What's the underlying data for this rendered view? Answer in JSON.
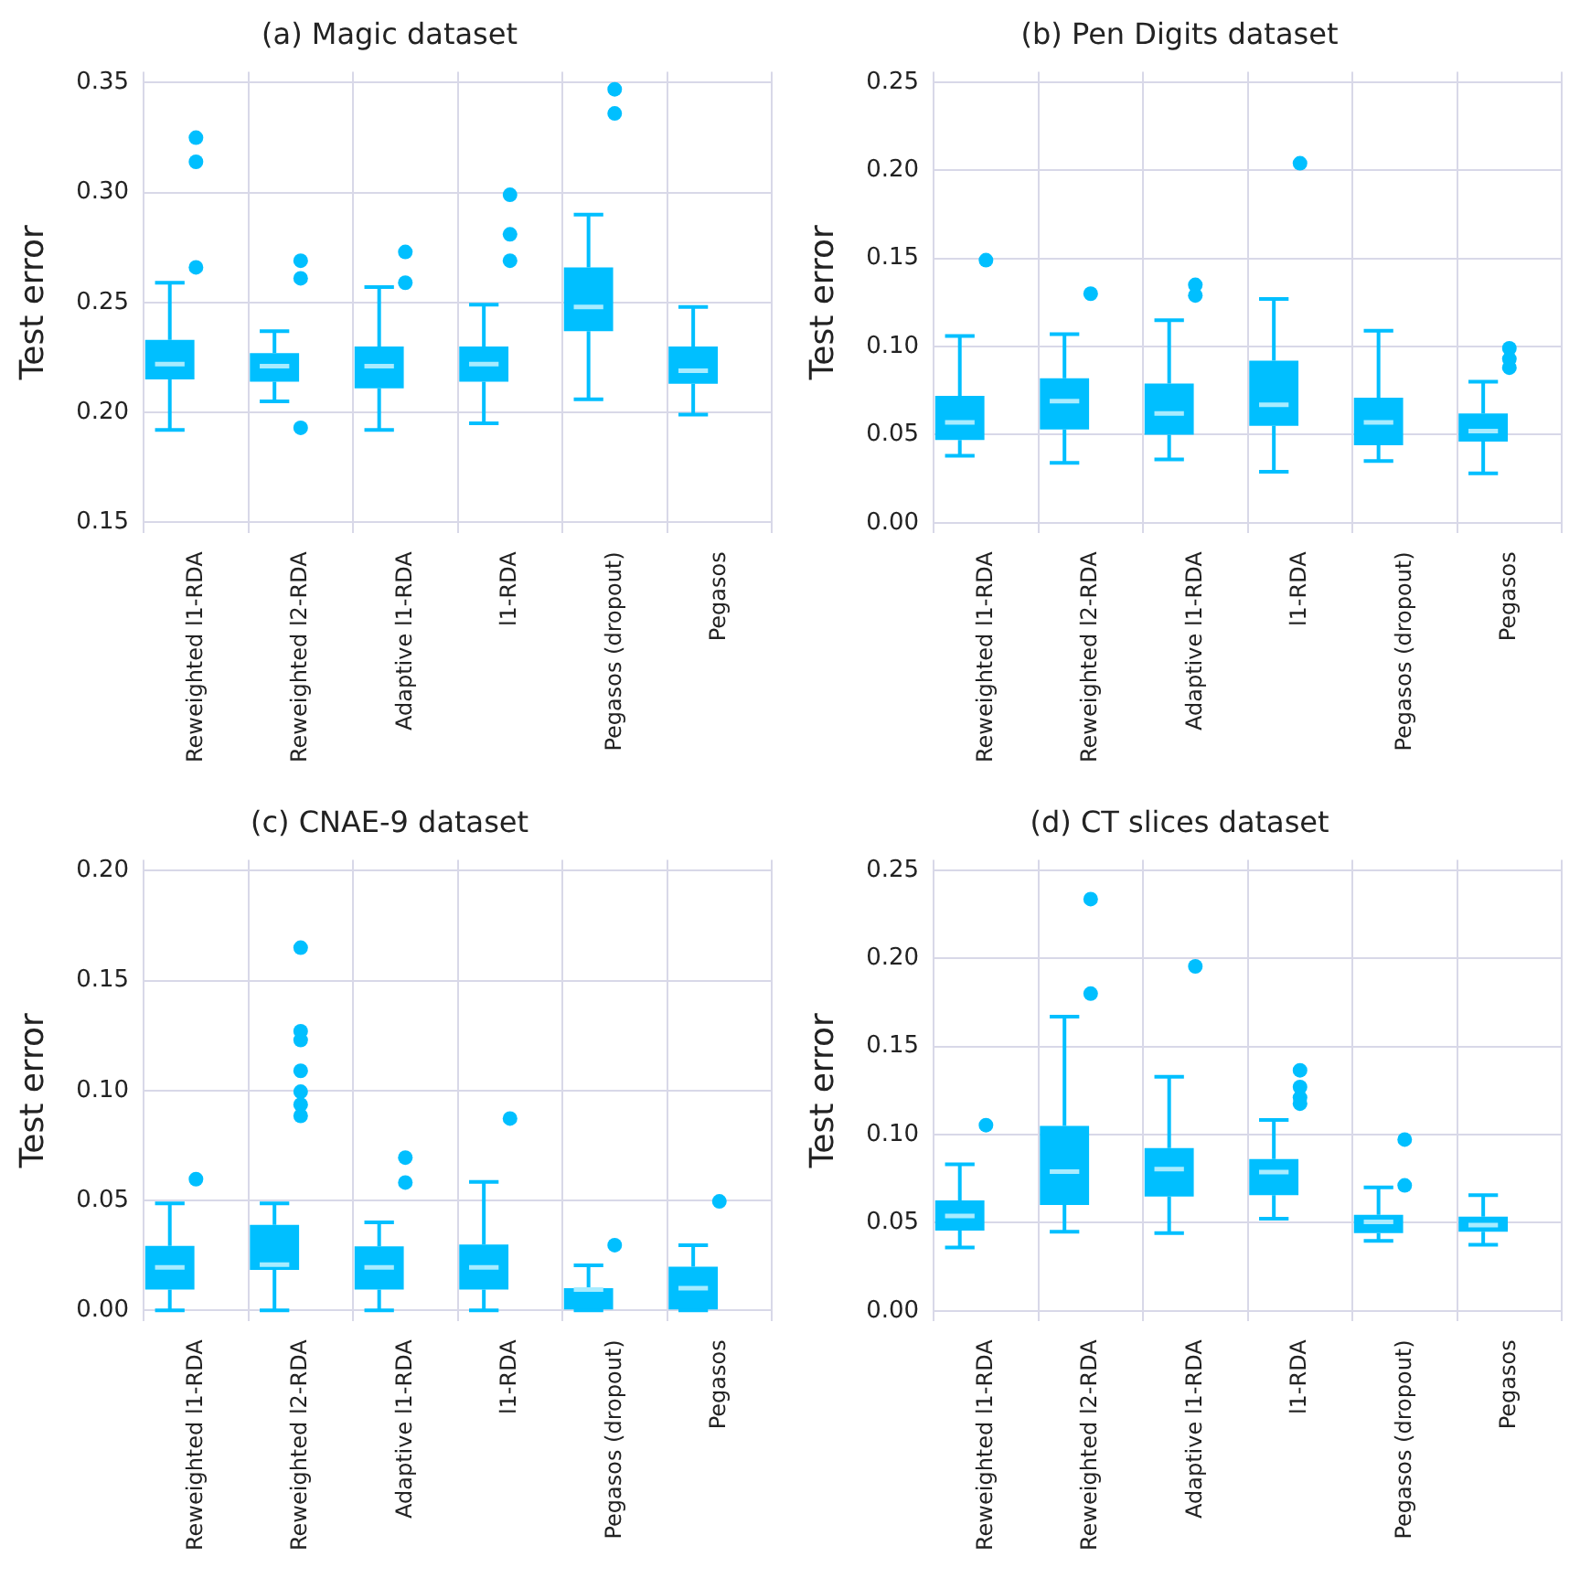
{
  "chart_data": [
    {
      "type": "box",
      "title": "(a) Magic dataset",
      "ylabel": "Test error",
      "categories": [
        "Reweighted l1-RDA",
        "Reweighted l2-RDA",
        "Adaptive l1-RDA",
        "l1-RDA",
        "Pegasos (dropout)",
        "Pegasos"
      ],
      "ylim": [
        0.145,
        0.355
      ],
      "yticks": [
        {
          "value": 0.15,
          "label": "0.15"
        },
        {
          "value": 0.2,
          "label": "0.20"
        },
        {
          "value": 0.25,
          "label": "0.25"
        },
        {
          "value": 0.3,
          "label": "0.30"
        },
        {
          "value": 0.35,
          "label": "0.35"
        }
      ],
      "grid": true,
      "legend": false,
      "series": [
        {
          "color": "#00bfff",
          "boxes": [
            {
              "low": 0.192,
              "q1": 0.215,
              "median": 0.222,
              "q3": 0.233,
              "high": 0.259,
              "outliers": [
                0.325,
                0.314,
                0.266
              ]
            },
            {
              "low": 0.205,
              "q1": 0.214,
              "median": 0.221,
              "q3": 0.227,
              "high": 0.237,
              "outliers": [
                0.269,
                0.261,
                0.193
              ]
            },
            {
              "low": 0.192,
              "q1": 0.211,
              "median": 0.221,
              "q3": 0.23,
              "high": 0.257,
              "outliers": [
                0.273,
                0.259
              ]
            },
            {
              "low": 0.195,
              "q1": 0.214,
              "median": 0.222,
              "q3": 0.23,
              "high": 0.249,
              "outliers": [
                0.299,
                0.281,
                0.269
              ]
            },
            {
              "low": 0.206,
              "q1": 0.237,
              "median": 0.248,
              "q3": 0.266,
              "high": 0.29,
              "outliers": [
                0.347,
                0.336
              ]
            },
            {
              "low": 0.199,
              "q1": 0.213,
              "median": 0.219,
              "q3": 0.23,
              "high": 0.248
            }
          ]
        }
      ]
    },
    {
      "type": "box",
      "title": "(b) Pen Digits dataset",
      "ylabel": "Test error",
      "categories": [
        "Reweighted l1-RDA",
        "Reweighted l2-RDA",
        "Adaptive l1-RDA",
        "l1-RDA",
        "Pegasos (dropout)",
        "Pegasos"
      ],
      "ylim": [
        -0.006,
        0.256
      ],
      "yticks": [
        {
          "value": 0,
          "label": "0.00"
        },
        {
          "value": 0.05,
          "label": "0.05"
        },
        {
          "value": 0.1,
          "label": "0.10"
        },
        {
          "value": 0.15,
          "label": "0.15"
        },
        {
          "value": 0.2,
          "label": "0.20"
        },
        {
          "value": 0.25,
          "label": "0.25"
        }
      ],
      "grid": true,
      "legend": false,
      "series": [
        {
          "color": "#00bfff",
          "boxes": [
            {
              "low": 0.038,
              "q1": 0.047,
              "median": 0.057,
              "q3": 0.072,
              "high": 0.106,
              "outliers": [
                0.149
              ]
            },
            {
              "low": 0.034,
              "q1": 0.053,
              "median": 0.069,
              "q3": 0.082,
              "high": 0.107,
              "outliers": [
                0.13
              ]
            },
            {
              "low": 0.036,
              "q1": 0.05,
              "median": 0.062,
              "q3": 0.079,
              "high": 0.115,
              "outliers": [
                0.135,
                0.129
              ]
            },
            {
              "low": 0.029,
              "q1": 0.055,
              "median": 0.067,
              "q3": 0.092,
              "high": 0.127,
              "outliers": [
                0.204
              ]
            },
            {
              "low": 0.035,
              "q1": 0.044,
              "median": 0.057,
              "q3": 0.071,
              "high": 0.109
            },
            {
              "low": 0.028,
              "q1": 0.046,
              "median": 0.052,
              "q3": 0.062,
              "high": 0.08,
              "outliers": [
                0.099,
                0.093,
                0.088
              ]
            }
          ]
        }
      ]
    },
    {
      "type": "box",
      "title": "(c) CNAE-9 dataset",
      "ylabel": "Test error",
      "categories": [
        "Reweighted l1-RDA",
        "Reweighted l2-RDA",
        "Adaptive l1-RDA",
        "l1-RDA",
        "Pegasos (dropout)",
        "Pegasos"
      ],
      "ylim": [
        -0.005,
        0.205
      ],
      "yticks": [
        {
          "value": 0,
          "label": "0.00"
        },
        {
          "value": 0.05,
          "label": "0.05"
        },
        {
          "value": 0.1,
          "label": "0.10"
        },
        {
          "value": 0.15,
          "label": "0.15"
        },
        {
          "value": 0.2,
          "label": "0.20"
        }
      ],
      "grid": true,
      "legend": false,
      "series": [
        {
          "color": "#00bfff",
          "boxes": [
            {
              "low": 0.0,
              "q1": 0.0095,
              "median": 0.0196,
              "q3": 0.0294,
              "high": 0.0487,
              "outliers": [
                0.0597
              ]
            },
            {
              "low": 0.0,
              "q1": 0.0184,
              "median": 0.0208,
              "q3": 0.0389,
              "high": 0.0487,
              "outliers": [
                0.165,
                0.127,
                0.123,
                0.109,
                0.0995,
                0.0936,
                0.0885
              ]
            },
            {
              "low": 0.0,
              "q1": 0.0095,
              "median": 0.0196,
              "q3": 0.0291,
              "high": 0.0401,
              "outliers": [
                0.0695,
                0.0582
              ]
            },
            {
              "low": 0.0,
              "q1": 0.0095,
              "median": 0.0196,
              "q3": 0.03,
              "high": 0.0585,
              "outliers": [
                0.0873
              ]
            },
            {
              "low": 0.0,
              "q1": 0.0,
              "median": 0.0095,
              "q3": 0.0101,
              "high": 0.0205,
              "outliers": [
                0.0297
              ]
            },
            {
              "low": 0.0,
              "q1": 0.0,
              "median": 0.0101,
              "q3": 0.0199,
              "high": 0.0297,
              "outliers": [
                0.0496
              ]
            }
          ]
        }
      ]
    },
    {
      "type": "box",
      "title": "(d) CT slices dataset",
      "ylabel": "Test error",
      "categories": [
        "Reweighted l1-RDA",
        "Reweighted l2-RDA",
        "Adaptive l1-RDA",
        "l1-RDA",
        "Pegasos (dropout)",
        "Pegasos"
      ],
      "ylim": [
        -0.006,
        0.256
      ],
      "yticks": [
        {
          "value": 0,
          "label": "0.00"
        },
        {
          "value": 0.05,
          "label": "0.05"
        },
        {
          "value": 0.1,
          "label": "0.10"
        },
        {
          "value": 0.15,
          "label": "0.15"
        },
        {
          "value": 0.2,
          "label": "0.20"
        },
        {
          "value": 0.25,
          "label": "0.25"
        }
      ],
      "grid": true,
      "legend": false,
      "series": [
        {
          "color": "#00bfff",
          "boxes": [
            {
              "low": 0.036,
              "q1": 0.0456,
              "median": 0.0538,
              "q3": 0.0627,
              "high": 0.0831,
              "outliers": [
                0.1054
              ]
            },
            {
              "low": 0.0449,
              "q1": 0.0601,
              "median": 0.079,
              "q3": 0.105,
              "high": 0.167,
              "outliers": [
                0.2337,
                0.18
              ]
            },
            {
              "low": 0.0441,
              "q1": 0.0649,
              "median": 0.0805,
              "q3": 0.0924,
              "high": 0.1328,
              "outliers": [
                0.1955
              ]
            },
            {
              "low": 0.0523,
              "q1": 0.0657,
              "median": 0.0787,
              "q3": 0.0861,
              "high": 0.1083,
              "outliers": [
                0.1365,
                0.127,
                0.121,
                0.1176
              ]
            },
            {
              "low": 0.0397,
              "q1": 0.0441,
              "median": 0.0505,
              "q3": 0.0545,
              "high": 0.0701,
              "outliers": [
                0.0972,
                0.0712
              ]
            },
            {
              "low": 0.0375,
              "q1": 0.0449,
              "median": 0.0486,
              "q3": 0.0534,
              "high": 0.0657
            }
          ]
        }
      ]
    }
  ]
}
